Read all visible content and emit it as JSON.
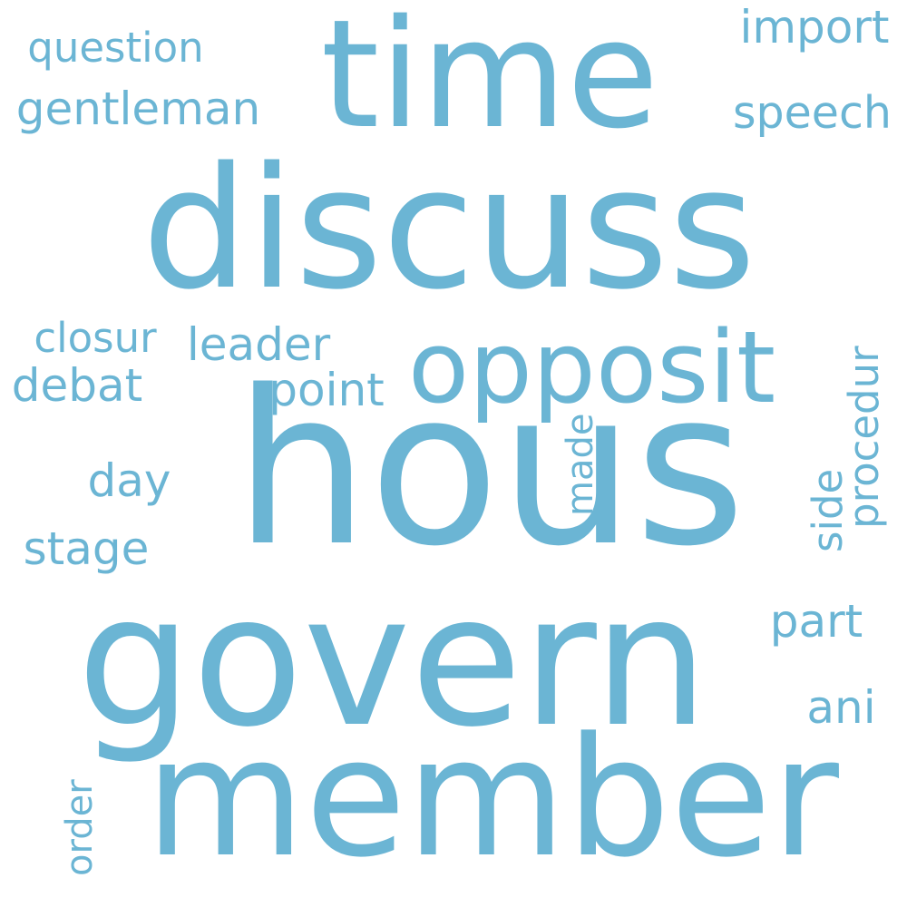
{
  "colors": {
    "background": "#ffffff",
    "word": "#6bb5d4"
  },
  "words": [
    {
      "id": "hous",
      "text": "hous",
      "weight": 1.0,
      "orientation": "horizontal"
    },
    {
      "id": "discuss",
      "text": "discuss",
      "weight": 0.95,
      "orientation": "horizontal"
    },
    {
      "id": "govern",
      "text": "govern",
      "weight": 0.85,
      "orientation": "horizontal"
    },
    {
      "id": "member",
      "text": "member",
      "weight": 0.8,
      "orientation": "horizontal"
    },
    {
      "id": "time",
      "text": "time",
      "weight": 0.75,
      "orientation": "horizontal"
    },
    {
      "id": "opposit",
      "text": "opposit",
      "weight": 0.4,
      "orientation": "horizontal"
    },
    {
      "id": "question",
      "text": "question",
      "weight": 0.2,
      "orientation": "horizontal"
    },
    {
      "id": "gentleman",
      "text": "gentleman",
      "weight": 0.2,
      "orientation": "horizontal"
    },
    {
      "id": "import",
      "text": "import",
      "weight": 0.2,
      "orientation": "horizontal"
    },
    {
      "id": "speech",
      "text": "speech",
      "weight": 0.2,
      "orientation": "horizontal"
    },
    {
      "id": "closur",
      "text": "closur",
      "weight": 0.18,
      "orientation": "horizontal"
    },
    {
      "id": "leader",
      "text": "leader",
      "weight": 0.2,
      "orientation": "horizontal"
    },
    {
      "id": "debat",
      "text": "debat",
      "weight": 0.2,
      "orientation": "horizontal"
    },
    {
      "id": "point",
      "text": "point",
      "weight": 0.2,
      "orientation": "horizontal"
    },
    {
      "id": "day",
      "text": "day",
      "weight": 0.2,
      "orientation": "horizontal"
    },
    {
      "id": "stage",
      "text": "stage",
      "weight": 0.2,
      "orientation": "horizontal"
    },
    {
      "id": "part",
      "text": "part",
      "weight": 0.2,
      "orientation": "horizontal"
    },
    {
      "id": "ani",
      "text": "ani",
      "weight": 0.2,
      "orientation": "horizontal"
    },
    {
      "id": "made",
      "text": "made",
      "weight": 0.18,
      "orientation": "vertical"
    },
    {
      "id": "procedur",
      "text": "procedur",
      "weight": 0.2,
      "orientation": "vertical"
    },
    {
      "id": "side",
      "text": "side",
      "weight": 0.2,
      "orientation": "vertical"
    },
    {
      "id": "order",
      "text": "order",
      "weight": 0.2,
      "orientation": "vertical"
    }
  ]
}
